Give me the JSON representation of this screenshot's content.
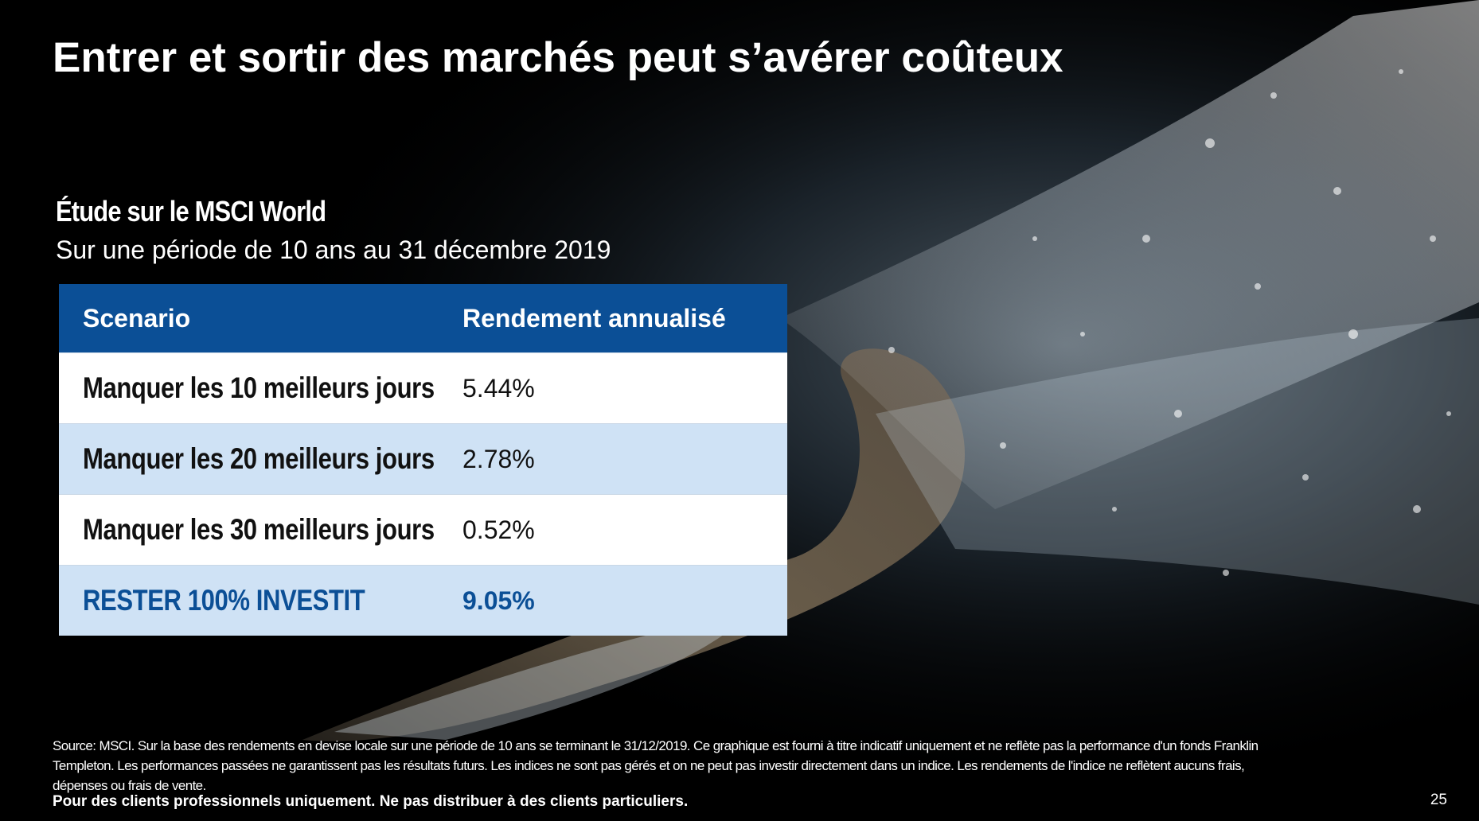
{
  "slide": {
    "title": "Entrer et sortir des marchés peut s’avérer coûteux",
    "study_title": "Étude sur le MSCI World",
    "study_subtitle": "Sur une période de 10 ans au 31 décembre 2019",
    "table": {
      "headers": [
        "Scenario",
        "Rendement annualisé"
      ],
      "rows": [
        {
          "scenario": "Manquer les 10 meilleurs jours",
          "return": "5.44%"
        },
        {
          "scenario": "Manquer les 20 meilleurs jours",
          "return": "2.78%"
        },
        {
          "scenario": "Manquer les 30 meilleurs jours",
          "return": "0.52%"
        },
        {
          "scenario": "RESTER 100% INVESTIT",
          "return": "9.05%"
        }
      ]
    },
    "source_note": "Source: MSCI. Sur la base des rendements en devise locale sur une période de 10 ans se terminant le 31/12/2019. Ce graphique est fourni à titre indicatif uniquement et ne reflète pas la performance d'un fonds Franklin Templeton. Les performances passées ne garantissent pas les résultats futurs. Les indices ne sont pas gérés et on ne peut pas investir directement dans un indice. Les rendements de l'indice ne reflètent aucuns frais, dépenses ou frais de vente.",
    "disclaimer": "Pour des clients professionnels uniquement. Ne pas distribuer à des clients particuliers.",
    "page_number": "25"
  },
  "colors": {
    "background": "#000000",
    "header_blue": "#0b4f96",
    "row_light_blue": "#cfe2f5",
    "row_white": "#ffffff",
    "highlight_text": "#0b4f96"
  },
  "background_image": {
    "description_icon": "swimmer-splash-photo"
  }
}
